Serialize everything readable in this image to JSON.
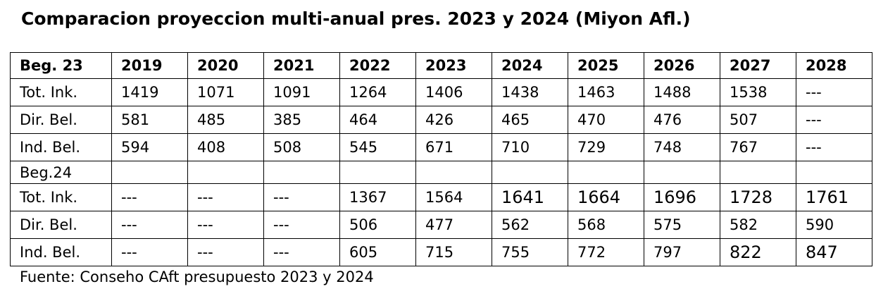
{
  "title": "Comparacion proyeccion multi-anual pres. 2023 y 2024 (Miyon Afl.)",
  "table": {
    "header": [
      "Beg. 23",
      "2019",
      "2020",
      "2021",
      "2022",
      "2023",
      "2024",
      "2025",
      "2026",
      "2027",
      "2028"
    ],
    "rows": [
      [
        "Tot. Ink.",
        "1419",
        "1071",
        "1091",
        "1264",
        "1406",
        "1438",
        "1463",
        "1488",
        "1538",
        "---"
      ],
      [
        "Dir. Bel.",
        "581",
        "485",
        "385",
        "464",
        "426",
        "465",
        "470",
        "476",
        "507",
        "---"
      ],
      [
        "Ind. Bel.",
        "594",
        "408",
        "508",
        "545",
        "671",
        "710",
        "729",
        "748",
        "767",
        "---"
      ],
      [
        "Beg.24",
        "",
        "",
        "",
        "",
        "",
        "",
        "",
        "",
        "",
        ""
      ],
      [
        "Tot. Ink.",
        "---",
        "---",
        "---",
        "1367",
        "1564",
        "1641",
        "1664",
        "1696",
        "1728",
        "1761"
      ],
      [
        "Dir. Bel.",
        "---",
        "---",
        "---",
        "506",
        "477",
        "562",
        "568",
        "575",
        "582",
        "590"
      ],
      [
        "Ind. Bel.",
        "---",
        "---",
        "---",
        "605",
        "715",
        "755",
        "772",
        "797",
        "822",
        "847"
      ]
    ]
  },
  "source": "Fuente: Conseho CAft presupuesto 2023 y 2024"
}
